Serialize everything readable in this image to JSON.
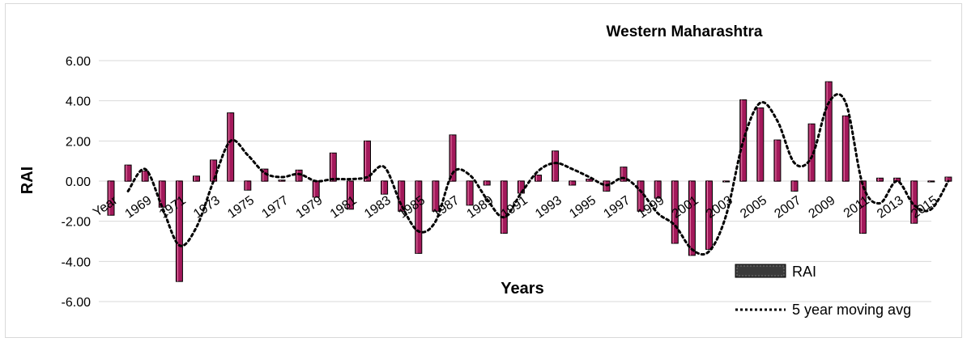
{
  "chart_data": {
    "type": "bar",
    "title": "Western Maharashtra",
    "xlabel": "Years",
    "ylabel": "RAI",
    "ylim": [
      -6,
      6
    ],
    "y_ticks": [
      "6.00",
      "4.00",
      "2.00",
      "0.00",
      "-2.00",
      "-4.00",
      "-6.00"
    ],
    "x_tick_labels": [
      "Year",
      "1969",
      "1971",
      "1973",
      "1975",
      "1977",
      "1979",
      "1981",
      "1983",
      "1985",
      "1987",
      "1989",
      "1991",
      "1993",
      "1995",
      "1997",
      "1999",
      "2001",
      "2003",
      "2005",
      "2007",
      "2009",
      "2011",
      "2013",
      "2015"
    ],
    "categories": [
      1967,
      1968,
      1969,
      1970,
      1971,
      1972,
      1973,
      1974,
      1975,
      1976,
      1977,
      1978,
      1979,
      1980,
      1981,
      1982,
      1983,
      1984,
      1985,
      1986,
      1987,
      1988,
      1989,
      1990,
      1991,
      1992,
      1993,
      1994,
      1995,
      1996,
      1997,
      1998,
      1999,
      2000,
      2001,
      2002,
      2003,
      2004,
      2005,
      2006,
      2007,
      2008,
      2009,
      2010,
      2011,
      2012,
      2013,
      2014,
      2015,
      2016
    ],
    "series": [
      {
        "name": "RAI",
        "values": [
          -1.7,
          0.8,
          0.5,
          -1.3,
          -5.0,
          0.25,
          1.05,
          3.4,
          -0.45,
          0.6,
          0.05,
          0.55,
          -0.8,
          1.4,
          -1.4,
          2.0,
          -0.65,
          -1.5,
          -3.6,
          -1.5,
          2.3,
          -1.2,
          -0.2,
          -2.6,
          -0.6,
          0.3,
          1.5,
          -0.2,
          0.1,
          -0.5,
          0.7,
          -1.5,
          -0.85,
          -3.1,
          -3.7,
          -3.4,
          0.0,
          4.05,
          3.65,
          2.05,
          -0.5,
          2.85,
          4.95,
          3.25,
          -2.6,
          0.15,
          0.15,
          -2.1,
          0.0,
          0.2
        ]
      },
      {
        "name": "5 year moving avg",
        "values": [
          null,
          -0.5,
          0.6,
          -1.3,
          -3.2,
          -2.3,
          0.0,
          2.0,
          1.3,
          0.4,
          0.2,
          0.35,
          0.0,
          0.1,
          0.1,
          0.2,
          0.7,
          -1.2,
          -2.5,
          -2.0,
          0.4,
          0.3,
          -0.9,
          -1.8,
          -0.6,
          0.5,
          0.9,
          0.6,
          0.2,
          -0.2,
          0.15,
          -0.5,
          -1.6,
          -2.2,
          -3.4,
          -3.5,
          -1.7,
          2.0,
          3.9,
          3.0,
          0.9,
          1.2,
          3.9,
          3.9,
          -0.2,
          -1.1,
          0.0,
          -1.2,
          -1.4,
          0.0
        ]
      }
    ],
    "legend": {
      "position": "bottom-right",
      "items": [
        {
          "label": "RAI",
          "style": "bar"
        },
        {
          "label": "5 year moving avg",
          "style": "dotted-line"
        }
      ]
    },
    "grid": true,
    "colors": {
      "bar_fill": "#a3195b",
      "bar_stroke": "#000000",
      "grid": "#d9d9d9",
      "line": "#000000"
    }
  }
}
